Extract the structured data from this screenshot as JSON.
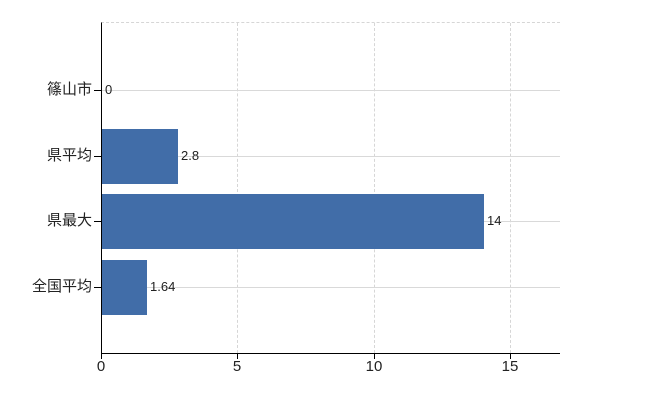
{
  "chart_data": {
    "type": "bar",
    "orientation": "horizontal",
    "title": "",
    "xlabel": "",
    "ylabel": "",
    "categories": [
      "篠山市",
      "県平均",
      "県最大",
      "全国平均"
    ],
    "values": [
      0,
      2.8,
      14,
      1.64
    ],
    "value_labels": [
      "0",
      "2.8",
      "14",
      "1.64"
    ],
    "xticks": [
      0,
      5,
      10,
      15
    ],
    "xtick_labels": [
      "0",
      "5",
      "10",
      "15"
    ],
    "xlim": [
      0,
      16.8
    ],
    "legend": "none",
    "grid": {
      "vertical": "dashed",
      "horizontal": "solid",
      "top_border": "dashed"
    },
    "colors": {
      "bar": "#416DA8",
      "gridline": "#d9d9d9",
      "dashed_gridline": "#d6d6d6",
      "axis": "#000000",
      "text": "#222222",
      "background": "#ffffff"
    }
  }
}
